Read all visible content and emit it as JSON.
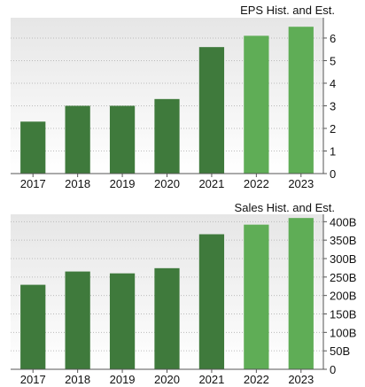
{
  "colors": {
    "historical": "#3f7a3c",
    "estimate": "#5fad56",
    "grid": "#bbbbbb",
    "axis": "#555555",
    "plot_top": "#e6e6e6",
    "plot_bottom": "#ffffff"
  },
  "chart_data": [
    {
      "type": "bar",
      "title": "EPS Hist. and Est.",
      "categories": [
        "2017",
        "2018",
        "2019",
        "2020",
        "2021",
        "2022",
        "2023"
      ],
      "values": [
        2.3,
        3.0,
        3.0,
        3.3,
        5.6,
        6.1,
        6.5
      ],
      "estimate": [
        false,
        false,
        false,
        false,
        false,
        true,
        true
      ],
      "ylim": [
        0,
        6.9
      ],
      "yticks": [
        0,
        1,
        2,
        3,
        4,
        5,
        6
      ],
      "ytick_labels": [
        "0",
        "1",
        "2",
        "3",
        "4",
        "5",
        "6"
      ],
      "grid": true
    },
    {
      "type": "bar",
      "title": "Sales Hist. and Est.",
      "categories": [
        "2017",
        "2018",
        "2019",
        "2020",
        "2021",
        "2022",
        "2023"
      ],
      "values": [
        229,
        265,
        260,
        274,
        366,
        392,
        410
      ],
      "estimate": [
        false,
        false,
        false,
        false,
        false,
        true,
        true
      ],
      "ylim": [
        0,
        420
      ],
      "yticks": [
        0,
        50,
        100,
        150,
        200,
        250,
        300,
        350,
        400
      ],
      "ytick_labels": [
        "0",
        "50B",
        "100B",
        "150B",
        "200B",
        "250B",
        "300B",
        "350B",
        "400B"
      ],
      "grid": true
    }
  ]
}
